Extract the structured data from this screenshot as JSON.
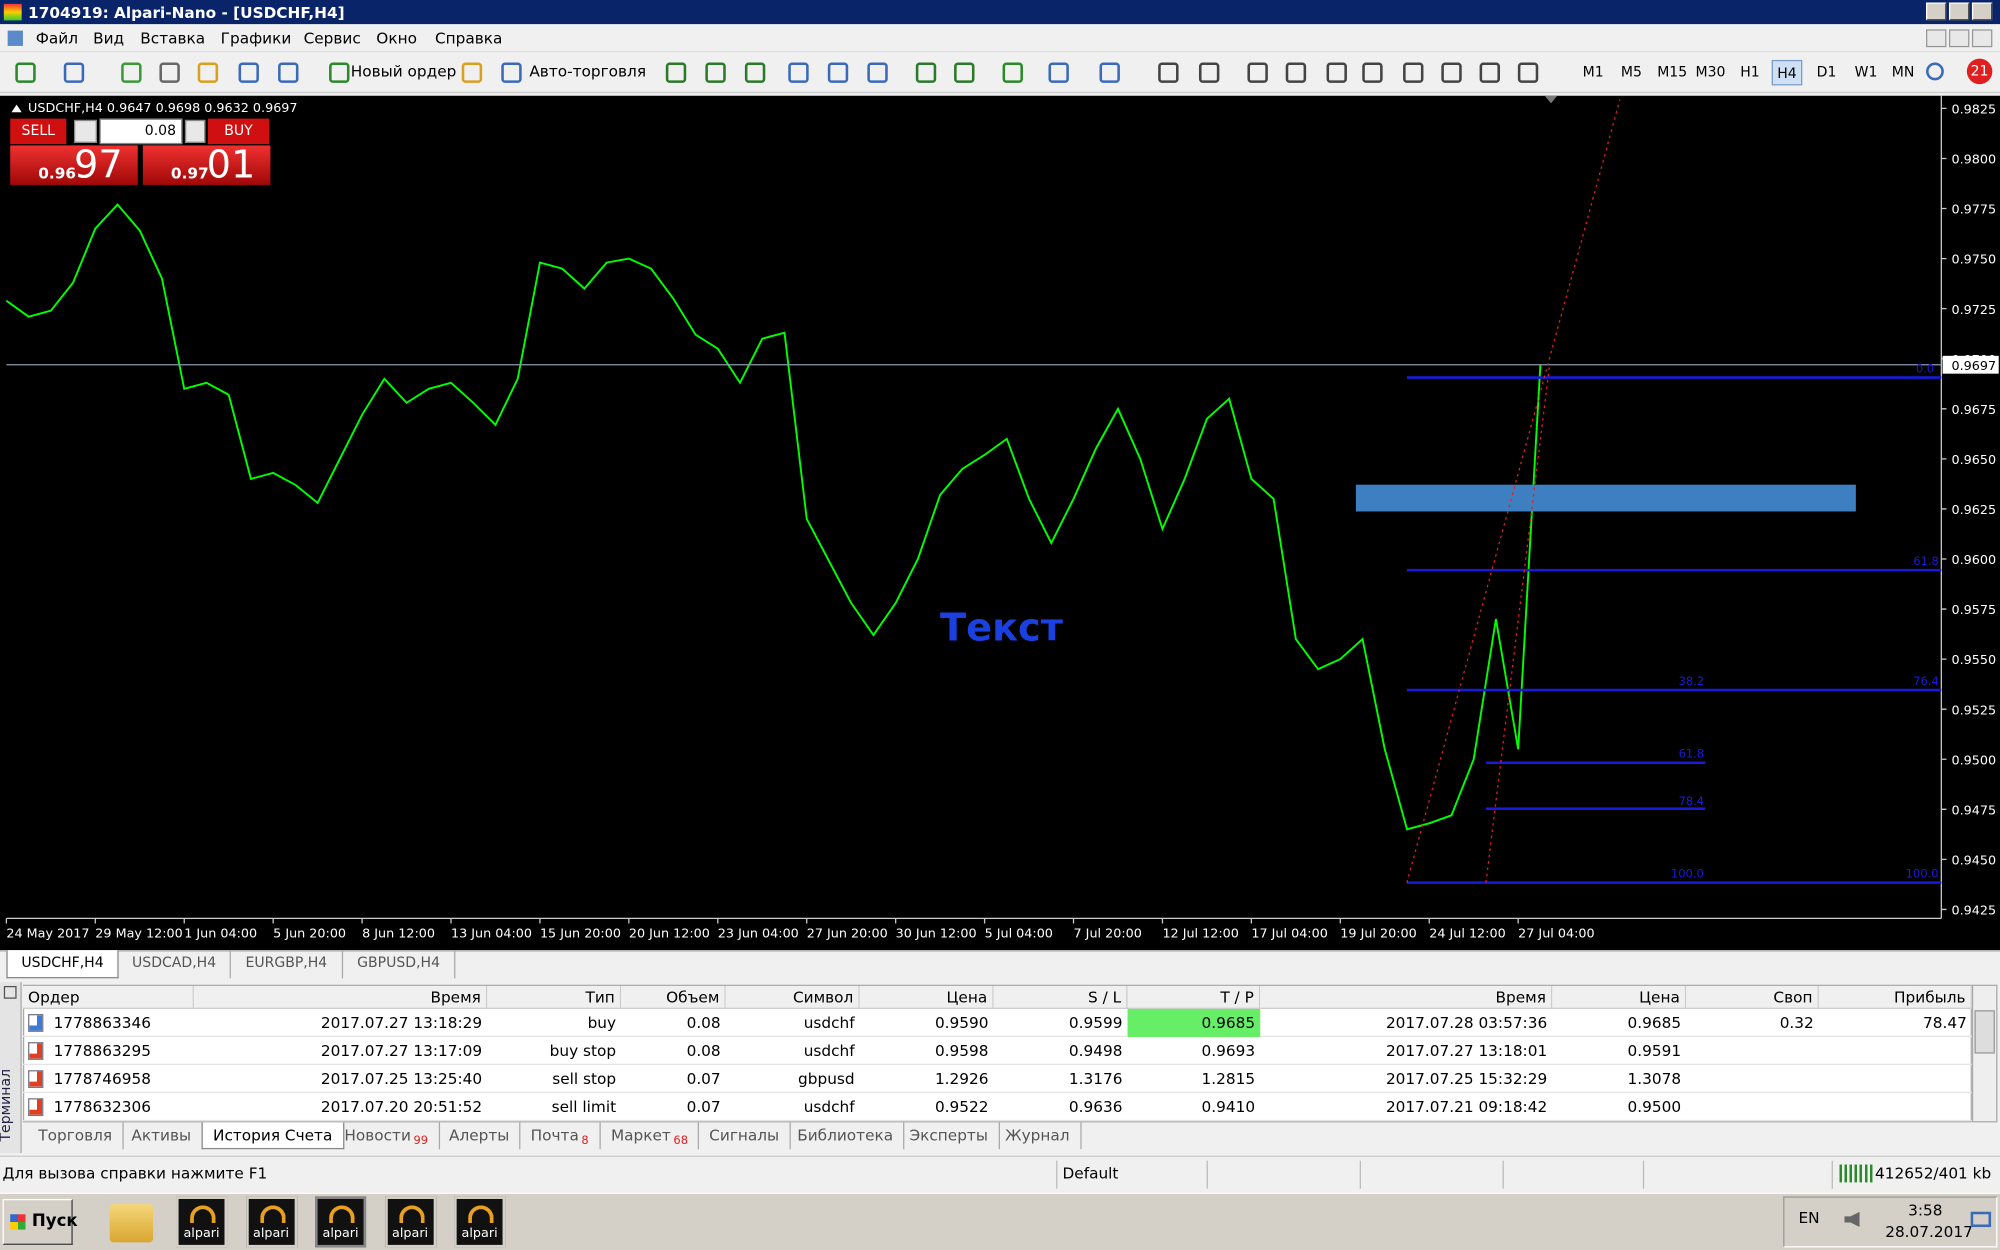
{
  "window": {
    "title": "1704919: Alpari-Nano - [USDCHF,H4]"
  },
  "menu": [
    "Файл",
    "Вид",
    "Вставка",
    "Графики",
    "Сервис",
    "Окно",
    "Справка"
  ],
  "toolbar": {
    "new_order": "Новый ордер",
    "auto_trading": "Авто-торговля",
    "timeframes": [
      "M1",
      "M5",
      "M15",
      "M30",
      "H1",
      "H4",
      "D1",
      "W1",
      "MN"
    ],
    "active_timeframe": "H4"
  },
  "one_click": {
    "sell": "SELL",
    "buy": "BUY",
    "volume": "0.08",
    "bid_prefix": "0.96",
    "bid_big": "97",
    "ask_prefix": "0.97",
    "ask_big": "01"
  },
  "chart_data": {
    "type": "line",
    "header": "USDCHF,H4  0.9647 0.9698 0.9632 0.9697",
    "color": "#00ff00",
    "categories": [
      "24 May 2017",
      null,
      null,
      null,
      "29 May 12:00",
      null,
      null,
      null,
      "1 Jun 04:00",
      null,
      null,
      null,
      "5 Jun 20:00",
      null,
      null,
      null,
      "8 Jun 12:00",
      null,
      null,
      null,
      "13 Jun 04:00",
      null,
      null,
      null,
      "15 Jun 20:00",
      null,
      null,
      null,
      "20 Jun 12:00",
      null,
      null,
      null,
      "23 Jun 04:00",
      null,
      null,
      null,
      "27 Jun 20:00",
      null,
      null,
      null,
      "30 Jun 12:00",
      null,
      null,
      null,
      "5 Jul 04:00",
      null,
      null,
      null,
      "7 Jul 20:00",
      null,
      null,
      null,
      "12 Jul 12:00",
      null,
      null,
      null,
      "17 Jul 04:00",
      null,
      null,
      null,
      "19 Jul 20:00",
      null,
      null,
      null,
      "24 Jul 12:00",
      null,
      null,
      null,
      "27 Jul 04:00",
      null
    ],
    "values": [
      0.9729,
      0.9721,
      0.9724,
      0.9738,
      0.9765,
      0.9777,
      0.9764,
      0.974,
      0.9685,
      0.9688,
      0.9682,
      0.964,
      0.9643,
      0.9637,
      0.9628,
      0.965,
      0.9672,
      0.969,
      0.9678,
      0.9685,
      0.9688,
      0.9678,
      0.9667,
      0.969,
      0.9748,
      0.9745,
      0.9735,
      0.9748,
      0.975,
      0.9745,
      0.973,
      0.9712,
      0.9705,
      0.9688,
      0.971,
      0.9713,
      0.962,
      0.9599,
      0.9578,
      0.9562,
      0.9578,
      0.96,
      0.9632,
      0.9645,
      0.9652,
      0.966,
      0.963,
      0.9608,
      0.963,
      0.9655,
      0.9675,
      0.965,
      0.9615,
      0.964,
      0.967,
      0.968,
      0.964,
      0.963,
      0.956,
      0.9545,
      0.955,
      0.956,
      0.9505,
      0.9465,
      0.9468,
      0.9472,
      0.95,
      0.957,
      0.9505,
      0.9697
    ],
    "ylim": [
      0.9425,
      0.9825
    ],
    "yticks": [
      0.9425,
      {
        "value": 0.945,
        "label": "0.9450"
      },
      0.9475,
      {
        "value": 0.95,
        "label": "0.9500"
      },
      0.9525,
      {
        "value": 0.955,
        "label": "0.9550"
      },
      0.9575,
      {
        "value": 0.96,
        "label": "0.9600"
      },
      0.9625,
      {
        "value": 0.965,
        "label": "0.9650"
      },
      0.9675,
      {
        "value": 0.97,
        "label": "0.9700"
      },
      0.9725,
      {
        "value": 0.975,
        "label": "0.9750"
      },
      0.9775,
      {
        "value": 0.98,
        "label": "0.9800"
      },
      0.9825
    ],
    "last_price": 0.9697,
    "annotation": "Текст",
    "fib_labels": [
      "0.0",
      "61.8",
      "38.2",
      "76.4",
      "61.8",
      "78.4",
      "100.0",
      "100.0"
    ]
  },
  "chart_tabs": [
    "USDCHF,H4",
    "USDCAD,H4",
    "EURGBP,H4",
    "GBPUSD,H4"
  ],
  "terminal": {
    "side_label": "Терминал",
    "columns": [
      "Ордер",
      "Время",
      "Тип",
      "Объем",
      "Символ",
      "Цена",
      "S / L",
      "T / P",
      "Время",
      "Цена",
      "Своп",
      "Прибыль"
    ],
    "rows": [
      [
        "1778863346",
        "2017.07.27 13:18:29",
        "buy",
        "0.08",
        "usdchf",
        "0.9590",
        "0.9599",
        "0.9685",
        "2017.07.28 03:57:36",
        "0.9685",
        "0.32",
        "78.47"
      ],
      [
        "1778863295",
        "2017.07.27 13:17:09",
        "buy stop",
        "0.08",
        "usdchf",
        "0.9598",
        "0.9498",
        "0.9693",
        "2017.07.27 13:18:01",
        "0.9591",
        null,
        null
      ],
      [
        "1778746958",
        "2017.07.25 13:25:40",
        "sell stop",
        "0.07",
        "gbpusd",
        "1.2926",
        "1.3176",
        "1.2815",
        "2017.07.25 15:32:29",
        "1.3078",
        null,
        null
      ],
      [
        "1778632306",
        "2017.07.20 20:51:52",
        "sell limit",
        "0.07",
        "usdchf",
        "0.9522",
        "0.9636",
        "0.9410",
        "2017.07.21 09:18:42",
        "0.9500",
        null,
        null
      ]
    ],
    "tabs": [
      {
        "label": "Торговля"
      },
      {
        "label": "Активы"
      },
      {
        "label": "История Счета"
      },
      {
        "label": "Новости",
        "badge": "99"
      },
      {
        "label": "Алерты"
      },
      {
        "label": "Почта",
        "badge": "8"
      },
      {
        "label": "Маркет",
        "badge": "68"
      },
      {
        "label": "Сигналы"
      },
      {
        "label": "Библиотека"
      },
      {
        "label": "Эксперты"
      },
      {
        "label": "Журнал"
      }
    ],
    "active_tab": "История Счета"
  },
  "status": {
    "help": "Для вызова справки нажмите F1",
    "profile": "Default",
    "traffic": "412652/401 kb"
  },
  "taskbar": {
    "start": "Пуск",
    "apps": [
      "alpari",
      "alpari",
      "alpari",
      "alpari",
      "alpari"
    ],
    "lang": "EN",
    "time": "3:58",
    "date": "28.07.2017"
  },
  "notification": "21"
}
